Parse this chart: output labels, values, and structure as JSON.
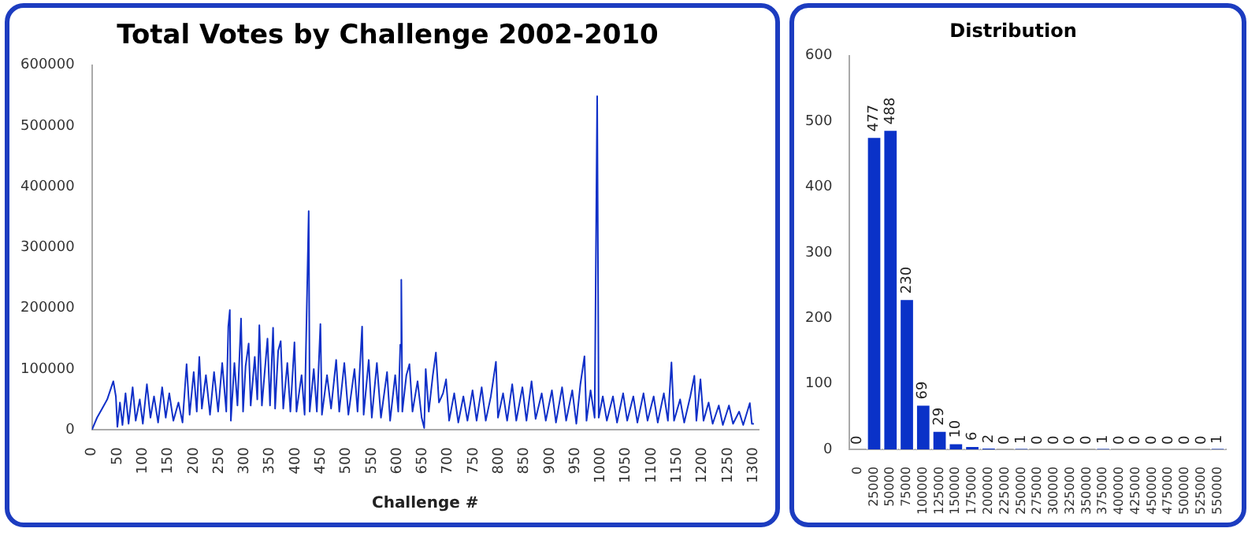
{
  "chart_data": [
    {
      "type": "line",
      "title": "Total Votes by Challenge 2002-2010",
      "xlabel": "Challenge #",
      "xlim": [
        0,
        1310
      ],
      "xticks": [
        0,
        50,
        100,
        150,
        200,
        250,
        300,
        350,
        400,
        450,
        500,
        550,
        600,
        650,
        700,
        750,
        800,
        850,
        900,
        950,
        1000,
        1050,
        1100,
        1150,
        1200,
        1250,
        1300
      ],
      "ylim": [
        0,
        600000
      ],
      "yticks": [
        0,
        100000,
        200000,
        300000,
        400000,
        500000,
        600000
      ],
      "grid": false,
      "legend": false,
      "series": [
        {
          "color": "#1030c8",
          "x": [
            0,
            10,
            20,
            30,
            38,
            42,
            47,
            50,
            55,
            60,
            66,
            72,
            80,
            86,
            94,
            100,
            108,
            115,
            122,
            130,
            138,
            145,
            152,
            160,
            170,
            178,
            186,
            192,
            200,
            206,
            211,
            216,
            224,
            232,
            240,
            248,
            256,
            264,
            268,
            271,
            273,
            280,
            286,
            293,
            297,
            302,
            308,
            312,
            320,
            325,
            329,
            334,
            345,
            350,
            356,
            360,
            366,
            371,
            376,
            384,
            390,
            398,
            402,
            412,
            418,
            426,
            428,
            436,
            442,
            449,
            452,
            462,
            470,
            480,
            486,
            496,
            504,
            516,
            522,
            531,
            534,
            544,
            550,
            560,
            568,
            580,
            586,
            596,
            602,
            606,
            608,
            610,
            618,
            624,
            630,
            640,
            648,
            653,
            656,
            662,
            670,
            676,
            682,
            690,
            696,
            702,
            712,
            720,
            730,
            738,
            748,
            756,
            766,
            774,
            784,
            794,
            798,
            808,
            816,
            826,
            834,
            846,
            854,
            864,
            872,
            884,
            892,
            904,
            912,
            924,
            932,
            944,
            952,
            960,
            968,
            972,
            980,
            988,
            993,
            996,
            1004,
            1012,
            1024,
            1032,
            1044,
            1052,
            1064,
            1072,
            1084,
            1092,
            1104,
            1112,
            1124,
            1132,
            1139,
            1144,
            1156,
            1164,
            1176,
            1184,
            1188,
            1196,
            1202,
            1212,
            1220,
            1232,
            1240,
            1252,
            1260,
            1272,
            1280,
            1293,
            1297,
            1301
          ],
          "values": [
            0,
            20000,
            35000,
            50000,
            70000,
            80000,
            55000,
            5000,
            45000,
            8000,
            60000,
            10000,
            70000,
            15000,
            50000,
            10000,
            75000,
            20000,
            55000,
            12000,
            70000,
            20000,
            60000,
            15000,
            45000,
            12000,
            108000,
            25000,
            95000,
            30000,
            120000,
            35000,
            90000,
            25000,
            95000,
            30000,
            110000,
            30000,
            170000,
            197000,
            15000,
            110000,
            40000,
            183000,
            30000,
            105000,
            142000,
            40000,
            120000,
            50000,
            172000,
            40000,
            150000,
            40000,
            168000,
            35000,
            130000,
            146000,
            35000,
            110000,
            30000,
            144000,
            30000,
            90000,
            25000,
            360000,
            30000,
            100000,
            30000,
            174000,
            25000,
            90000,
            35000,
            115000,
            30000,
            110000,
            25000,
            100000,
            30000,
            170000,
            25000,
            115000,
            20000,
            110000,
            20000,
            95000,
            15000,
            90000,
            30000,
            140000,
            247000,
            30000,
            90000,
            108000,
            30000,
            80000,
            20000,
            3000,
            100000,
            30000,
            90000,
            127000,
            45000,
            60000,
            83000,
            15000,
            60000,
            12000,
            55000,
            15000,
            65000,
            15000,
            70000,
            15000,
            55000,
            112000,
            20000,
            60000,
            15000,
            75000,
            15000,
            70000,
            15000,
            80000,
            18000,
            60000,
            15000,
            65000,
            12000,
            70000,
            15000,
            65000,
            10000,
            75000,
            121000,
            15000,
            65000,
            20000,
            549000,
            20000,
            55000,
            15000,
            55000,
            12000,
            60000,
            15000,
            55000,
            12000,
            60000,
            15000,
            55000,
            12000,
            60000,
            15000,
            111000,
            15000,
            50000,
            12000,
            55000,
            89000,
            15000,
            83000,
            15000,
            45000,
            10000,
            40000,
            8000,
            40000,
            10000,
            30000,
            8000,
            44000,
            10000,
            10000
          ]
        }
      ]
    },
    {
      "type": "bar",
      "title": "Distribution",
      "categories": [
        "0",
        "25000",
        "50000",
        "75000",
        "100000",
        "125000",
        "150000",
        "175000",
        "200000",
        "225000",
        "250000",
        "275000",
        "300000",
        "325000",
        "350000",
        "375000",
        "400000",
        "425000",
        "450000",
        "475000",
        "500000",
        "525000",
        "550000"
      ],
      "ylim": [
        0,
        600
      ],
      "yticks": [
        0,
        100,
        200,
        300,
        400,
        500,
        600
      ],
      "grid": false,
      "legend": false,
      "data_labels": true,
      "series": [
        {
          "color": "#0a32c8",
          "values": [
            0,
            477,
            488,
            230,
            69,
            29,
            10,
            6,
            2,
            0,
            1,
            0,
            0,
            0,
            0,
            1,
            0,
            0,
            0,
            0,
            0,
            0,
            1
          ]
        }
      ]
    }
  ]
}
